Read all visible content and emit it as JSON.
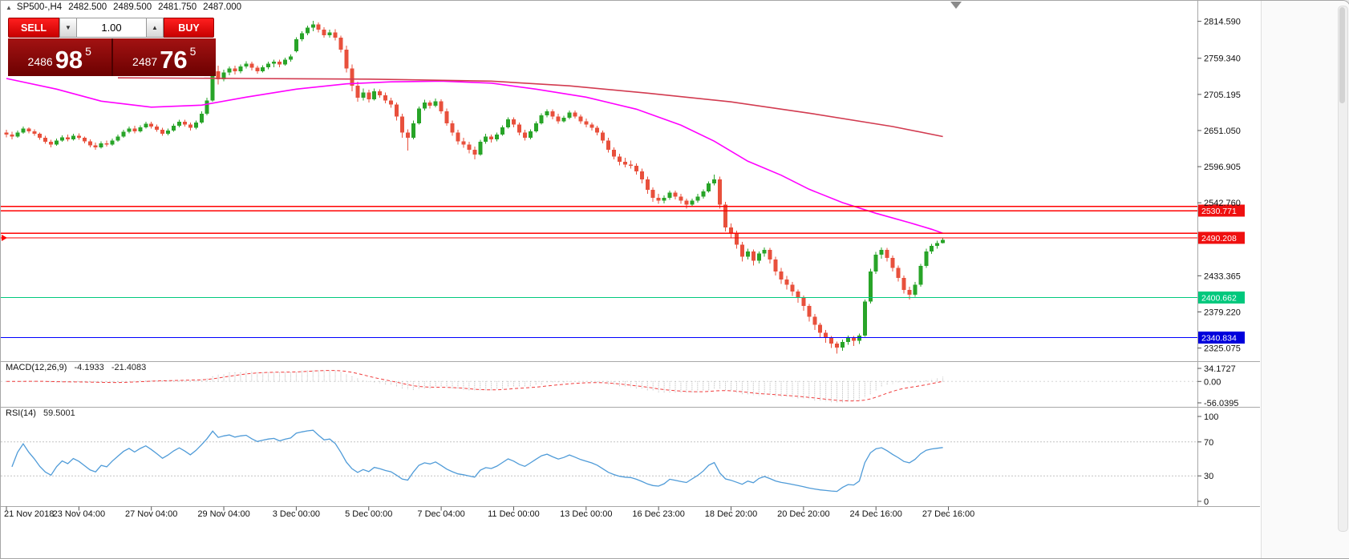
{
  "header": {
    "symbol": "SP500-,H4",
    "open": "2482.500",
    "high": "2489.500",
    "low": "2481.750",
    "close": "2487.000"
  },
  "trade_panel": {
    "sell_label": "SELL",
    "buy_label": "BUY",
    "volume": "1.00",
    "sell_quote": {
      "prefix": "2486",
      "big": "98",
      "sup": "5"
    },
    "buy_quote": {
      "prefix": "2487",
      "big": "76",
      "sup": "5"
    },
    "colors": {
      "button_red": "#e60000",
      "panel_dark": "#6c0101"
    }
  },
  "chart_data": {
    "type": "candlestick",
    "symbol": "SP500-",
    "timeframe": "H4",
    "title": "SP500-,H4 2482.500 2489.500 2481.750 2487.000",
    "current_bar": {
      "open": 2482.5,
      "high": 2489.5,
      "low": 2481.75,
      "close": 2487.0
    },
    "y_axis": {
      "tick_labels": [
        "2814.590",
        "2759.340",
        "2705.195",
        "2651.050",
        "2596.905",
        "2542.760",
        "2433.365",
        "2379.220",
        "2325.075"
      ]
    },
    "x_axis": {
      "tick_labels": [
        {
          "label": "21 Nov 2018",
          "i": 0
        },
        {
          "label": "23 Nov 04:00",
          "i": 13
        },
        {
          "label": "27 Nov 04:00",
          "i": 26
        },
        {
          "label": "29 Nov 04:00",
          "i": 39
        },
        {
          "label": "3 Dec 00:00",
          "i": 52
        },
        {
          "label": "5 Dec 00:00",
          "i": 65
        },
        {
          "label": "7 Dec 04:00",
          "i": 78
        },
        {
          "label": "11 Dec 00:00",
          "i": 91
        },
        {
          "label": "13 Dec 00:00",
          "i": 104
        },
        {
          "label": "16 Dec 23:00",
          "i": 117
        },
        {
          "label": "18 Dec 20:00",
          "i": 130
        },
        {
          "label": "20 Dec 20:00",
          "i": 143
        },
        {
          "label": "24 Dec 16:00",
          "i": 156
        },
        {
          "label": "27 Dec 16:00",
          "i": 169
        }
      ]
    },
    "levels": [
      {
        "price": 2537.4,
        "color": "#ff0000"
      },
      {
        "price": 2530.771,
        "color": "#ff0000",
        "badge": "2530.771",
        "badge_color": "#ef1010"
      },
      {
        "price": 2497.2,
        "color": "#ff0000"
      },
      {
        "price": 2490.208,
        "color": "#ff0000",
        "badge": "2490.208",
        "badge_color": "#ef1010"
      },
      {
        "price": 2400.662,
        "color": "#00c87d",
        "badge": "2400.662",
        "badge_color": "#00c87d"
      },
      {
        "price": 2340.834,
        "color": "#0000ff",
        "badge": "2340.834",
        "badge_color": "#0000dc"
      }
    ],
    "ma_fast": {
      "name": "ma-fast",
      "color": "#ff00ff",
      "points": [
        [
          0,
          2729
        ],
        [
          9,
          2713
        ],
        [
          17,
          2695
        ],
        [
          26,
          2686
        ],
        [
          35,
          2689
        ],
        [
          43,
          2701
        ],
        [
          52,
          2713
        ],
        [
          61,
          2721
        ],
        [
          69,
          2724
        ],
        [
          78,
          2725
        ],
        [
          87,
          2722
        ],
        [
          95,
          2713
        ],
        [
          104,
          2701
        ],
        [
          113,
          2683
        ],
        [
          121,
          2659
        ],
        [
          127,
          2635
        ],
        [
          133,
          2605
        ],
        [
          139,
          2584
        ],
        [
          144,
          2563
        ],
        [
          150,
          2543
        ],
        [
          156,
          2527
        ],
        [
          162,
          2513
        ],
        [
          166,
          2503
        ],
        [
          168,
          2497
        ]
      ]
    },
    "ma_slow": {
      "name": "ma-slow",
      "color": "#d23b50",
      "points": [
        [
          20,
          2730
        ],
        [
          43,
          2729
        ],
        [
          65,
          2728
        ],
        [
          87,
          2725
        ],
        [
          101,
          2718
        ],
        [
          115,
          2707
        ],
        [
          130,
          2694
        ],
        [
          144,
          2677
        ],
        [
          159,
          2657
        ],
        [
          168,
          2642
        ]
      ]
    },
    "candles": {
      "bull_color": "#28a428",
      "bear_color": "#e8503c",
      "ohlc": [
        [
          2648,
          2652,
          2641,
          2645
        ],
        [
          2645,
          2649,
          2638,
          2642
        ],
        [
          2642,
          2651,
          2640,
          2648
        ],
        [
          2648,
          2657,
          2646,
          2654
        ],
        [
          2654,
          2656,
          2647,
          2650
        ],
        [
          2650,
          2653,
          2643,
          2646
        ],
        [
          2646,
          2648,
          2637,
          2640
        ],
        [
          2640,
          2643,
          2631,
          2634
        ],
        [
          2634,
          2637,
          2626,
          2630
        ],
        [
          2630,
          2639,
          2628,
          2636
        ],
        [
          2636,
          2644,
          2634,
          2641
        ],
        [
          2641,
          2645,
          2635,
          2638
        ],
        [
          2638,
          2646,
          2636,
          2643
        ],
        [
          2643,
          2647,
          2637,
          2640
        ],
        [
          2640,
          2642,
          2632,
          2635
        ],
        [
          2635,
          2638,
          2626,
          2629
        ],
        [
          2629,
          2633,
          2622,
          2626
        ],
        [
          2626,
          2635,
          2624,
          2632
        ],
        [
          2632,
          2636,
          2627,
          2630
        ],
        [
          2630,
          2639,
          2628,
          2636
        ],
        [
          2636,
          2645,
          2634,
          2642
        ],
        [
          2642,
          2652,
          2640,
          2649
        ],
        [
          2649,
          2657,
          2647,
          2654
        ],
        [
          2654,
          2658,
          2647,
          2650
        ],
        [
          2650,
          2659,
          2648,
          2656
        ],
        [
          2656,
          2664,
          2654,
          2661
        ],
        [
          2661,
          2664,
          2654,
          2657
        ],
        [
          2657,
          2660,
          2649,
          2652
        ],
        [
          2652,
          2655,
          2643,
          2646
        ],
        [
          2646,
          2654,
          2644,
          2651
        ],
        [
          2651,
          2661,
          2649,
          2658
        ],
        [
          2658,
          2667,
          2656,
          2664
        ],
        [
          2664,
          2667,
          2657,
          2660
        ],
        [
          2660,
          2663,
          2651,
          2655
        ],
        [
          2655,
          2666,
          2653,
          2663
        ],
        [
          2663,
          2680,
          2661,
          2676
        ],
        [
          2676,
          2700,
          2674,
          2696
        ],
        [
          2696,
          2745,
          2694,
          2740
        ],
        [
          2740,
          2748,
          2720,
          2728
        ],
        [
          2728,
          2742,
          2725,
          2738
        ],
        [
          2738,
          2747,
          2734,
          2744
        ],
        [
          2744,
          2748,
          2735,
          2740
        ],
        [
          2740,
          2750,
          2737,
          2747
        ],
        [
          2747,
          2755,
          2744,
          2751
        ],
        [
          2751,
          2754,
          2741,
          2745
        ],
        [
          2745,
          2748,
          2736,
          2740
        ],
        [
          2740,
          2749,
          2738,
          2746
        ],
        [
          2746,
          2754,
          2743,
          2751
        ],
        [
          2751,
          2757,
          2746,
          2754
        ],
        [
          2754,
          2757,
          2746,
          2750
        ],
        [
          2750,
          2760,
          2748,
          2757
        ],
        [
          2757,
          2765,
          2754,
          2762
        ],
        [
          2770,
          2791,
          2768,
          2788
        ],
        [
          2788,
          2800,
          2785,
          2797
        ],
        [
          2797,
          2808,
          2794,
          2805
        ],
        [
          2805,
          2815.5,
          2800,
          2810
        ],
        [
          2810,
          2813,
          2798,
          2802
        ],
        [
          2802,
          2806,
          2790,
          2794
        ],
        [
          2794,
          2802,
          2790,
          2798
        ],
        [
          2798,
          2803,
          2786,
          2790
        ],
        [
          2790,
          2793,
          2768,
          2772
        ],
        [
          2772,
          2778,
          2738,
          2744
        ],
        [
          2744,
          2750,
          2710,
          2718
        ],
        [
          2718,
          2724,
          2694,
          2700
        ],
        [
          2700,
          2714,
          2696,
          2708
        ],
        [
          2708,
          2712,
          2693,
          2698
        ],
        [
          2698,
          2714,
          2696,
          2710
        ],
        [
          2710,
          2713,
          2700,
          2704
        ],
        [
          2704,
          2708,
          2692,
          2696
        ],
        [
          2696,
          2700,
          2685,
          2690
        ],
        [
          2690,
          2693,
          2666,
          2672
        ],
        [
          2672,
          2676,
          2640,
          2648
        ],
        [
          2648,
          2653,
          2621,
          2640
        ],
        [
          2640,
          2666,
          2638,
          2662
        ],
        [
          2662,
          2687,
          2660,
          2684
        ],
        [
          2684,
          2697,
          2681,
          2693
        ],
        [
          2693,
          2696,
          2684,
          2688
        ],
        [
          2688,
          2699,
          2686,
          2695
        ],
        [
          2695,
          2698,
          2676,
          2680
        ],
        [
          2680,
          2684,
          2658,
          2662
        ],
        [
          2662,
          2666,
          2643,
          2648
        ],
        [
          2648,
          2652,
          2630,
          2635
        ],
        [
          2635,
          2640,
          2625,
          2630
        ],
        [
          2630,
          2634,
          2617,
          2622
        ],
        [
          2622,
          2627,
          2608,
          2615
        ],
        [
          2615,
          2637,
          2613,
          2634
        ],
        [
          2634,
          2646,
          2631,
          2642
        ],
        [
          2642,
          2645,
          2633,
          2638
        ],
        [
          2638,
          2648,
          2635,
          2645
        ],
        [
          2645,
          2659,
          2643,
          2656
        ],
        [
          2656,
          2671,
          2654,
          2668
        ],
        [
          2668,
          2671,
          2656,
          2660
        ],
        [
          2660,
          2663,
          2644,
          2648
        ],
        [
          2648,
          2652,
          2636,
          2640
        ],
        [
          2640,
          2653,
          2638,
          2650
        ],
        [
          2650,
          2665,
          2648,
          2662
        ],
        [
          2662,
          2677,
          2660,
          2674
        ],
        [
          2674,
          2683,
          2671,
          2680
        ],
        [
          2680,
          2683,
          2668,
          2672
        ],
        [
          2672,
          2676,
          2661,
          2665
        ],
        [
          2665,
          2673,
          2663,
          2670
        ],
        [
          2670,
          2681,
          2668,
          2678
        ],
        [
          2678,
          2681,
          2669,
          2672
        ],
        [
          2672,
          2675,
          2661,
          2665
        ],
        [
          2665,
          2669,
          2656,
          2660
        ],
        [
          2660,
          2663,
          2651,
          2655
        ],
        [
          2655,
          2658,
          2644,
          2648
        ],
        [
          2648,
          2651,
          2632,
          2636
        ],
        [
          2636,
          2640,
          2618,
          2622
        ],
        [
          2622,
          2626,
          2608,
          2612
        ],
        [
          2612,
          2616,
          2599,
          2604
        ],
        [
          2604,
          2610,
          2596,
          2600
        ],
        [
          2600,
          2606,
          2594,
          2598
        ],
        [
          2598,
          2602,
          2585,
          2590
        ],
        [
          2590,
          2594,
          2572,
          2578
        ],
        [
          2578,
          2582,
          2556,
          2562
        ],
        [
          2562,
          2566,
          2544,
          2550
        ],
        [
          2550,
          2556,
          2541,
          2546
        ],
        [
          2546,
          2554,
          2542,
          2550
        ],
        [
          2550,
          2561,
          2547,
          2558
        ],
        [
          2558,
          2561,
          2548,
          2552
        ],
        [
          2552,
          2556,
          2541,
          2546
        ],
        [
          2546,
          2549,
          2534,
          2540
        ],
        [
          2540,
          2549,
          2537,
          2546
        ],
        [
          2546,
          2556,
          2543,
          2552
        ],
        [
          2552,
          2563,
          2549,
          2560
        ],
        [
          2560,
          2575,
          2558,
          2572
        ],
        [
          2572,
          2585,
          2569,
          2578
        ],
        [
          2578,
          2582,
          2534,
          2540
        ],
        [
          2540,
          2544,
          2500,
          2506
        ],
        [
          2506,
          2512,
          2490,
          2496
        ],
        [
          2496,
          2501,
          2474,
          2480
        ],
        [
          2480,
          2484,
          2455,
          2462
        ],
        [
          2462,
          2474,
          2458,
          2470
        ],
        [
          2470,
          2473,
          2449,
          2456
        ],
        [
          2456,
          2470,
          2452,
          2467
        ],
        [
          2467,
          2476,
          2462,
          2472
        ],
        [
          2472,
          2475,
          2452,
          2458
        ],
        [
          2458,
          2462,
          2434,
          2440
        ],
        [
          2440,
          2445,
          2421,
          2428
        ],
        [
          2428,
          2433,
          2413,
          2420
        ],
        [
          2420,
          2424,
          2403,
          2410
        ],
        [
          2410,
          2413,
          2393,
          2400
        ],
        [
          2400,
          2404,
          2381,
          2388
        ],
        [
          2388,
          2391,
          2365,
          2372
        ],
        [
          2372,
          2376,
          2352,
          2360
        ],
        [
          2360,
          2363,
          2341,
          2348
        ],
        [
          2348,
          2352,
          2333,
          2340
        ],
        [
          2340,
          2343,
          2325,
          2332
        ],
        [
          2332,
          2335,
          2317,
          2326
        ],
        [
          2326,
          2338,
          2321,
          2334
        ],
        [
          2334,
          2344,
          2330,
          2340
        ],
        [
          2340,
          2343,
          2328,
          2336
        ],
        [
          2336,
          2347,
          2331,
          2344
        ],
        [
          2344,
          2398,
          2342,
          2395
        ],
        [
          2395,
          2444,
          2392,
          2440
        ],
        [
          2440,
          2469,
          2436,
          2465
        ],
        [
          2465,
          2476,
          2459,
          2472
        ],
        [
          2472,
          2475,
          2455,
          2460
        ],
        [
          2460,
          2464,
          2440,
          2445
        ],
        [
          2445,
          2449,
          2425,
          2430
        ],
        [
          2430,
          2434,
          2407,
          2412
        ],
        [
          2412,
          2417,
          2398,
          2405
        ],
        [
          2405,
          2424,
          2402,
          2420
        ],
        [
          2420,
          2451,
          2417,
          2448
        ],
        [
          2448,
          2474,
          2445,
          2470
        ],
        [
          2470,
          2481,
          2466,
          2478
        ],
        [
          2478,
          2486,
          2474,
          2482.5
        ],
        [
          2482.5,
          2489.5,
          2481.75,
          2487
        ]
      ]
    },
    "macd": {
      "label": "MACD(12,26,9)",
      "main_value": "-4.1933",
      "signal_value": "-21.4083",
      "scale_labels": [
        "34.1727",
        "0.00",
        "-56.0395"
      ],
      "scale_values": [
        34.1727,
        0,
        -56.0395
      ],
      "params": [
        12,
        26,
        9
      ],
      "hist_color": "#ababab",
      "signal_color": "#f03c3c"
    },
    "rsi": {
      "label": "RSI(14)",
      "value": "59.5001",
      "period": 14,
      "scale_labels": [
        "100",
        "70",
        "30",
        "0"
      ],
      "scale_values": [
        100,
        70,
        30,
        0
      ],
      "level_lines": [
        70,
        30
      ],
      "color": "#4f9bd8"
    },
    "shift_marker_color": "#8a8a8a"
  }
}
